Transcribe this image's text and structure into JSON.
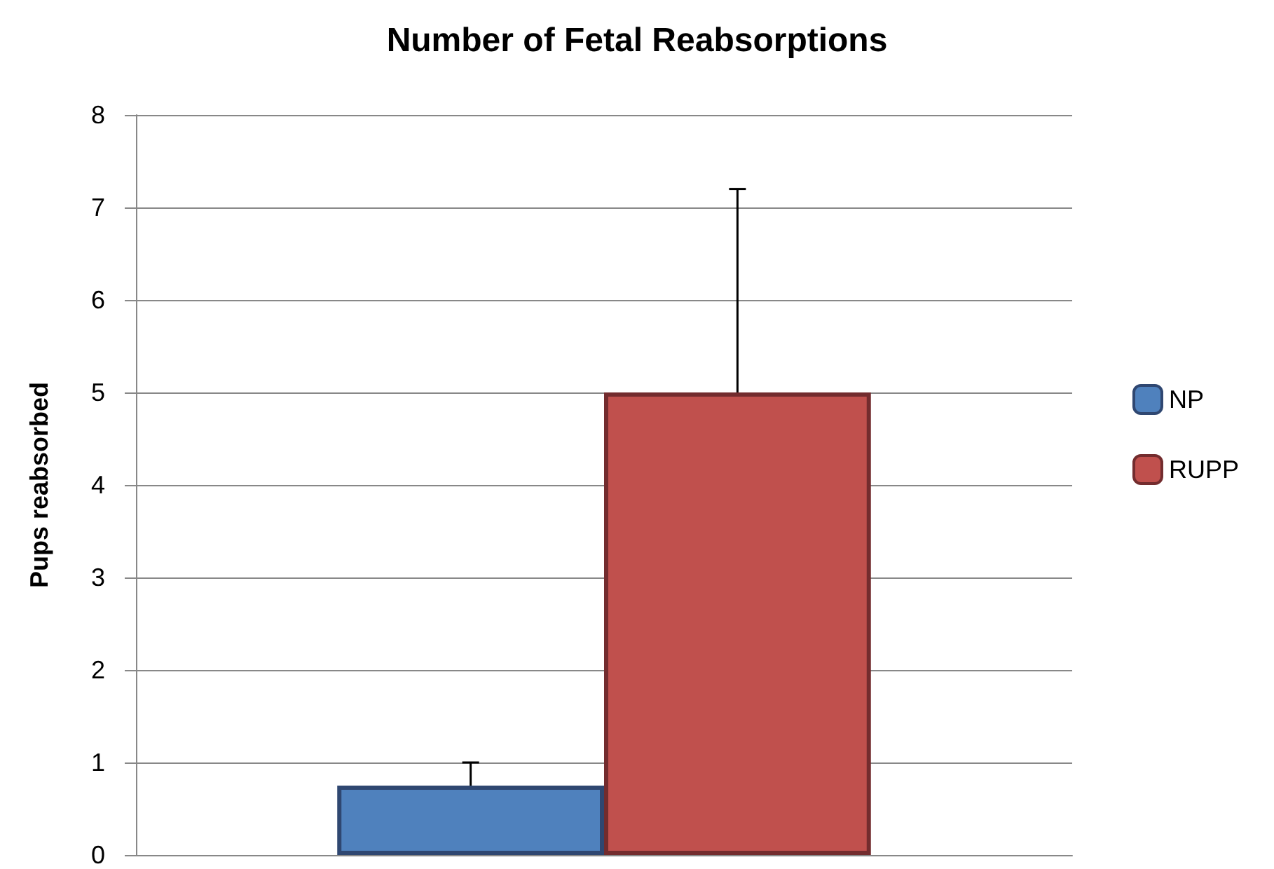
{
  "chart_data": {
    "type": "bar",
    "title": "Number of Fetal Reabsorptions",
    "ylabel": "Pups reabsorbed",
    "categories": [
      null
    ],
    "series": [
      {
        "name": "NP",
        "color": "#4f81bd",
        "values": [
          0.75
        ],
        "errors": [
          [
            0.75,
            1
          ]
        ]
      },
      {
        "name": "RUPP",
        "color": "#c0504d",
        "values": [
          5
        ],
        "errors": [
          [
            5,
            7.2
          ]
        ]
      }
    ],
    "ylim": [
      0,
      8
    ],
    "yticks": [
      0,
      1,
      2,
      3,
      4,
      5,
      6,
      7,
      8
    ],
    "grid": "y",
    "legend": "right"
  }
}
